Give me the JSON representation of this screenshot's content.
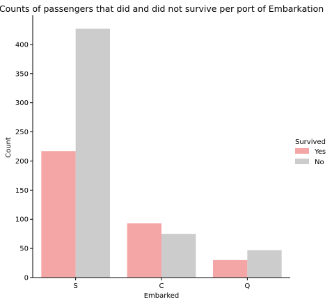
{
  "chart_data": {
    "type": "bar",
    "title": "Counts of passengers that did and did not survive per port of Embarkation",
    "xlabel": "Embarked",
    "ylabel": "Count",
    "categories": [
      "S",
      "C",
      "Q"
    ],
    "series": [
      {
        "name": "Yes",
        "values": [
          217,
          93,
          30
        ],
        "color": "#f4a6a6"
      },
      {
        "name": "No",
        "values": [
          427,
          75,
          47
        ],
        "color": "#cccccc"
      }
    ],
    "ylim": [
      0,
      450
    ],
    "yticks": [
      0,
      50,
      100,
      150,
      200,
      250,
      300,
      350,
      400
    ],
    "grid": false,
    "legend": {
      "title": "Survived",
      "position": "right"
    }
  }
}
